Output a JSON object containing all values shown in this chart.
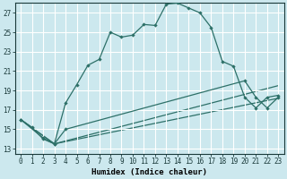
{
  "xlabel": "Humidex (Indice chaleur)",
  "bg_color": "#cce8ee",
  "grid_color": "#ffffff",
  "line_color": "#2d7068",
  "xlim": [
    -0.5,
    23.5
  ],
  "ylim": [
    12.5,
    28.0
  ],
  "xticks": [
    0,
    1,
    2,
    3,
    4,
    5,
    6,
    7,
    8,
    9,
    10,
    11,
    12,
    13,
    14,
    15,
    16,
    17,
    18,
    19,
    20,
    21,
    22,
    23
  ],
  "yticks": [
    13,
    15,
    17,
    19,
    21,
    23,
    25,
    27
  ],
  "line1_x": [
    0,
    1,
    2,
    3,
    4,
    5,
    6,
    7,
    8,
    9,
    10,
    11,
    12,
    13,
    14,
    15,
    16,
    17,
    18,
    19,
    20,
    21,
    22,
    23
  ],
  "line1_y": [
    16.0,
    15.2,
    14.0,
    13.5,
    17.7,
    19.6,
    21.6,
    22.2,
    25.0,
    24.5,
    24.7,
    25.8,
    25.7,
    27.9,
    28.0,
    27.5,
    27.0,
    25.5,
    22.0,
    21.5,
    18.3,
    17.2,
    18.3,
    18.5
  ],
  "line2_x": [
    0,
    2,
    3,
    4,
    20,
    21,
    22,
    23
  ],
  "line2_y": [
    16.0,
    14.1,
    13.5,
    15.0,
    20.0,
    18.3,
    17.2,
    18.3
  ],
  "line3_x": [
    0,
    3,
    23
  ],
  "line3_y": [
    16.0,
    13.5,
    19.5
  ],
  "line4_x": [
    0,
    3,
    23
  ],
  "line4_y": [
    16.0,
    13.5,
    18.2
  ]
}
